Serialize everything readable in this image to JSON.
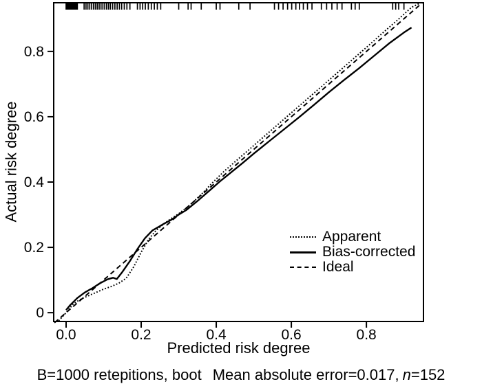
{
  "figure": {
    "background_color": "#ffffff",
    "ink_color": "#000000"
  },
  "chart_data": {
    "type": "line",
    "title": "",
    "xlabel": "Predicted risk degree",
    "ylabel": "Actual risk degree",
    "xlim": [
      -0.033,
      0.952
    ],
    "ylim": [
      -0.027,
      0.949
    ],
    "grid": false,
    "legend_position": "inside-right-middle",
    "x_ticks": {
      "values": [
        0.0,
        0.2,
        0.4,
        0.6,
        0.8
      ],
      "labels": [
        "0.0",
        "0.2",
        "0.4",
        "0.6",
        "0.8"
      ]
    },
    "y_ticks": {
      "values": [
        0.0,
        0.2,
        0.4,
        0.6,
        0.8
      ],
      "labels": [
        "0",
        "0.2",
        "0.4",
        "0.6",
        "0.8"
      ]
    },
    "series": [
      {
        "name": "Apparent",
        "style": "dotted",
        "points": [
          [
            -0.02,
            -0.025
          ],
          [
            0.0,
            0.0
          ],
          [
            0.02,
            0.028
          ],
          [
            0.04,
            0.042
          ],
          [
            0.06,
            0.052
          ],
          [
            0.08,
            0.062
          ],
          [
            0.1,
            0.072
          ],
          [
            0.12,
            0.08
          ],
          [
            0.14,
            0.09
          ],
          [
            0.16,
            0.105
          ],
          [
            0.18,
            0.14
          ],
          [
            0.2,
            0.185
          ],
          [
            0.22,
            0.225
          ],
          [
            0.24,
            0.252
          ],
          [
            0.26,
            0.272
          ],
          [
            0.28,
            0.288
          ],
          [
            0.3,
            0.303
          ],
          [
            0.33,
            0.33
          ],
          [
            0.36,
            0.362
          ],
          [
            0.39,
            0.398
          ],
          [
            0.42,
            0.432
          ],
          [
            0.45,
            0.462
          ],
          [
            0.48,
            0.492
          ],
          [
            0.52,
            0.532
          ],
          [
            0.56,
            0.572
          ],
          [
            0.6,
            0.612
          ],
          [
            0.64,
            0.652
          ],
          [
            0.68,
            0.692
          ],
          [
            0.72,
            0.732
          ],
          [
            0.76,
            0.772
          ],
          [
            0.8,
            0.812
          ],
          [
            0.84,
            0.853
          ],
          [
            0.88,
            0.893
          ],
          [
            0.92,
            0.935
          ],
          [
            0.943,
            0.948
          ]
        ]
      },
      {
        "name": "Bias-corrected",
        "style": "solid",
        "points": [
          [
            0.0,
            0.008
          ],
          [
            0.01,
            0.022
          ],
          [
            0.03,
            0.045
          ],
          [
            0.05,
            0.062
          ],
          [
            0.07,
            0.075
          ],
          [
            0.09,
            0.09
          ],
          [
            0.11,
            0.102
          ],
          [
            0.125,
            0.107
          ],
          [
            0.135,
            0.103
          ],
          [
            0.15,
            0.125
          ],
          [
            0.17,
            0.158
          ],
          [
            0.19,
            0.195
          ],
          [
            0.21,
            0.228
          ],
          [
            0.23,
            0.252
          ],
          [
            0.25,
            0.265
          ],
          [
            0.26,
            0.272
          ],
          [
            0.28,
            0.284
          ],
          [
            0.3,
            0.3
          ],
          [
            0.32,
            0.314
          ],
          [
            0.35,
            0.342
          ],
          [
            0.38,
            0.372
          ],
          [
            0.41,
            0.402
          ],
          [
            0.44,
            0.43
          ],
          [
            0.47,
            0.458
          ],
          [
            0.5,
            0.487
          ],
          [
            0.54,
            0.524
          ],
          [
            0.58,
            0.561
          ],
          [
            0.62,
            0.598
          ],
          [
            0.66,
            0.636
          ],
          [
            0.7,
            0.675
          ],
          [
            0.74,
            0.712
          ],
          [
            0.78,
            0.748
          ],
          [
            0.82,
            0.786
          ],
          [
            0.86,
            0.824
          ],
          [
            0.9,
            0.858
          ],
          [
            0.92,
            0.873
          ]
        ]
      },
      {
        "name": "Ideal",
        "style": "dashed",
        "points": [
          [
            -0.031,
            -0.031
          ],
          [
            0.949,
            0.949
          ]
        ]
      }
    ],
    "rug_x": [
      0.0,
      0.002,
      0.004,
      0.006,
      0.008,
      0.01,
      0.012,
      0.014,
      0.016,
      0.018,
      0.02,
      0.022,
      0.024,
      0.026,
      0.028,
      0.03,
      0.048,
      0.053,
      0.058,
      0.063,
      0.068,
      0.073,
      0.078,
      0.083,
      0.088,
      0.093,
      0.098,
      0.103,
      0.108,
      0.113,
      0.118,
      0.124,
      0.13,
      0.136,
      0.142,
      0.148,
      0.155,
      0.162,
      0.17,
      0.19,
      0.197,
      0.204,
      0.211,
      0.219,
      0.227,
      0.235,
      0.243,
      0.252,
      0.3,
      0.325,
      0.333,
      0.36,
      0.4,
      0.41,
      0.46,
      0.49,
      0.555,
      0.566,
      0.578,
      0.59,
      0.601,
      0.612,
      0.622,
      0.632,
      0.643,
      0.655,
      0.68,
      0.694,
      0.708,
      0.722,
      0.735,
      0.76,
      0.77,
      0.781,
      0.87,
      0.878,
      0.886,
      0.9
    ]
  },
  "footer": {
    "part1": "B=1000 retepitions, boot",
    "part2": "Mean absolute error=0.017,",
    "n_label": "n",
    "part3": "=152"
  }
}
